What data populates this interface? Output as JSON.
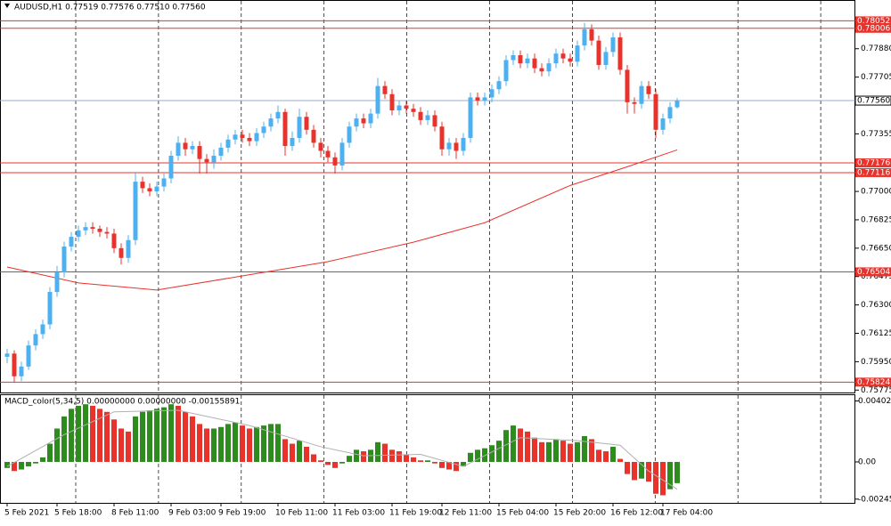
{
  "chart_data": {
    "type": "candlestick",
    "title": "AUDUSD,H1  0.77519 0.77576 0.77510 0.77560",
    "categories": [
      "5 Feb 2021",
      null,
      null,
      null,
      null,
      null,
      null,
      "5 Feb 18:00",
      null,
      null,
      null,
      null,
      null,
      null,
      null,
      "8 Feb 11:00",
      null,
      null,
      null,
      null,
      null,
      null,
      null,
      "9 Feb 03:00",
      null,
      null,
      null,
      null,
      null,
      null,
      "9 Feb 19:00",
      null,
      null,
      null,
      null,
      null,
      null,
      null,
      "10 Feb 11:00",
      null,
      null,
      null,
      null,
      null,
      null,
      null,
      "11 Feb 03:00",
      null,
      null,
      null,
      null,
      null,
      null,
      null,
      "11 Feb 19:00",
      null,
      null,
      null,
      null,
      null,
      null,
      "12 Feb 11:00",
      null,
      null,
      null,
      null,
      null,
      null,
      null,
      "15 Feb 04:00",
      null,
      null,
      null,
      null,
      null,
      null,
      null,
      "15 Feb 20:00",
      null,
      null,
      null,
      null,
      null,
      null,
      null,
      "16 Feb 12:00",
      null,
      null,
      null,
      null,
      null,
      null,
      "17 Feb 04:00",
      null,
      null
    ],
    "open": [
      0.7598,
      0.76,
      0.7586,
      0.7592,
      0.7605,
      0.7612,
      0.7618,
      0.7638,
      0.765,
      0.7666,
      0.7672,
      0.7676,
      0.7678,
      0.7677,
      0.7675,
      0.7674,
      0.7665,
      0.7659,
      0.767,
      0.7706,
      0.7702,
      0.77,
      0.7703,
      0.7708,
      0.7722,
      0.773,
      0.7726,
      0.7728,
      0.772,
      0.7718,
      0.7722,
      0.7727,
      0.7732,
      0.7735,
      0.7733,
      0.7731,
      0.7736,
      0.774,
      0.7745,
      0.7749,
      0.7728,
      0.7733,
      0.7746,
      0.7738,
      0.773,
      0.7725,
      0.7721,
      0.7716,
      0.773,
      0.774,
      0.7745,
      0.7742,
      0.7748,
      0.7765,
      0.776,
      0.775,
      0.7753,
      0.7751,
      0.7749,
      0.7744,
      0.7747,
      0.774,
      0.7726,
      0.773,
      0.7725,
      0.7733,
      0.7758,
      0.7756,
      0.7758,
      0.7763,
      0.7768,
      0.7781,
      0.7784,
      0.7779,
      0.7782,
      0.7776,
      0.7774,
      0.7779,
      0.7785,
      0.7782,
      0.778,
      0.779,
      0.78,
      0.7793,
      0.7778,
      0.7786,
      0.7795,
      0.7775,
      0.7755,
      0.7754,
      0.7765,
      0.776,
      0.7738,
      0.7745,
      0.77519
    ],
    "high": [
      0.7603,
      0.7602,
      0.7595,
      0.7608,
      0.7615,
      0.7621,
      0.7641,
      0.7654,
      0.7669,
      0.7675,
      0.7679,
      0.7681,
      0.7681,
      0.7679,
      0.7678,
      0.7677,
      0.7668,
      0.7673,
      0.7712,
      0.7709,
      0.7705,
      0.7706,
      0.7711,
      0.7725,
      0.7734,
      0.7733,
      0.7731,
      0.7731,
      0.7723,
      0.7726,
      0.773,
      0.7735,
      0.7738,
      0.7738,
      0.7736,
      0.7739,
      0.7743,
      0.7748,
      0.7753,
      0.7751,
      0.7737,
      0.7751,
      0.7749,
      0.7741,
      0.7733,
      0.7728,
      0.7724,
      0.7733,
      0.7743,
      0.7748,
      0.7748,
      0.7751,
      0.777,
      0.7768,
      0.7763,
      0.7756,
      0.7756,
      0.7754,
      0.7752,
      0.775,
      0.775,
      0.7743,
      0.7733,
      0.7733,
      0.7736,
      0.7761,
      0.7761,
      0.7761,
      0.7766,
      0.7771,
      0.7784,
      0.7787,
      0.7787,
      0.7785,
      0.7785,
      0.7779,
      0.7782,
      0.7788,
      0.7788,
      0.7785,
      0.7793,
      0.7804,
      0.7803,
      0.7796,
      0.7789,
      0.7798,
      0.7798,
      0.7778,
      0.7758,
      0.7768,
      0.7768,
      0.7763,
      0.7748,
      0.7755,
      0.77576
    ],
    "low": [
      0.7594,
      0.7582,
      0.7583,
      0.759,
      0.7602,
      0.7609,
      0.7615,
      0.7635,
      0.7647,
      0.7663,
      0.7669,
      0.7673,
      0.7674,
      0.7672,
      0.7671,
      0.7662,
      0.7655,
      0.7656,
      0.7667,
      0.7699,
      0.7697,
      0.7697,
      0.77,
      0.7705,
      0.7719,
      0.7722,
      0.7723,
      0.7711,
      0.7711,
      0.7714,
      0.7719,
      0.7724,
      0.7729,
      0.773,
      0.7728,
      0.7728,
      0.7733,
      0.7737,
      0.7742,
      0.7722,
      0.7725,
      0.773,
      0.7735,
      0.7727,
      0.7721,
      0.7718,
      0.7711,
      0.7713,
      0.7727,
      0.7737,
      0.7739,
      0.7739,
      0.7745,
      0.7757,
      0.7747,
      0.7747,
      0.7748,
      0.7746,
      0.7741,
      0.7741,
      0.7737,
      0.7722,
      0.7722,
      0.772,
      0.7722,
      0.773,
      0.7753,
      0.7753,
      0.7755,
      0.776,
      0.7765,
      0.7778,
      0.7776,
      0.7776,
      0.7773,
      0.7771,
      0.7771,
      0.7776,
      0.7779,
      0.7777,
      0.7777,
      0.7787,
      0.779,
      0.7775,
      0.7775,
      0.7783,
      0.7772,
      0.7748,
      0.7748,
      0.7751,
      0.7757,
      0.7733,
      0.7735,
      0.7742,
      0.7751
    ],
    "close": [
      0.76,
      0.7586,
      0.7592,
      0.7605,
      0.7612,
      0.7618,
      0.7638,
      0.765,
      0.7666,
      0.7672,
      0.7676,
      0.7678,
      0.7677,
      0.7675,
      0.7674,
      0.7665,
      0.7659,
      0.767,
      0.7706,
      0.7702,
      0.77,
      0.7703,
      0.7708,
      0.7722,
      0.773,
      0.7726,
      0.7728,
      0.772,
      0.7718,
      0.7722,
      0.7727,
      0.7732,
      0.7735,
      0.7733,
      0.7731,
      0.7736,
      0.774,
      0.7745,
      0.7749,
      0.7728,
      0.7733,
      0.7746,
      0.7738,
      0.773,
      0.7725,
      0.7721,
      0.7716,
      0.773,
      0.774,
      0.7745,
      0.7742,
      0.7748,
      0.7765,
      0.776,
      0.775,
      0.7753,
      0.7751,
      0.7749,
      0.7744,
      0.7747,
      0.774,
      0.7726,
      0.773,
      0.7725,
      0.7733,
      0.7758,
      0.7756,
      0.7758,
      0.7763,
      0.7768,
      0.7781,
      0.7784,
      0.7779,
      0.7782,
      0.7776,
      0.7774,
      0.7779,
      0.7785,
      0.7782,
      0.778,
      0.779,
      0.78,
      0.7793,
      0.7778,
      0.7786,
      0.7795,
      0.7775,
      0.7755,
      0.7754,
      0.7765,
      0.776,
      0.7738,
      0.7745,
      0.7752,
      0.7756
    ],
    "up_color": "#4db0f0",
    "down_color": "#e8332c",
    "ylim": [
      0.7576,
      0.78175
    ],
    "yticks": [
      {
        "value": 0.7788,
        "label": "0.77880"
      },
      0.77705,
      0.77355,
      {
        "value": 0.77,
        "label": "0.77000"
      },
      0.76825,
      {
        "value": 0.7665,
        "label": "0.76650"
      },
      0.76475,
      {
        "value": 0.763,
        "label": "0.76300"
      },
      0.76125,
      {
        "value": 0.7595,
        "label": "0.75950"
      },
      0.75775
    ],
    "levels": [
      0.78052,
      0.78006,
      0.77176,
      0.77116,
      0.76504,
      0.75824
    ],
    "level_color": "#e8332c",
    "price_line": {
      "value": 0.7756,
      "label": "0.77560"
    },
    "ma": {
      "x": [
        0,
        10,
        21,
        33,
        45,
        57,
        67,
        79,
        87,
        94
      ],
      "values": [
        0.76534,
        0.76436,
        0.76392,
        0.76479,
        0.76567,
        0.76687,
        0.76807,
        0.77037,
        0.77152,
        0.77256
      ],
      "color": "#e8332c"
    },
    "macd": {
      "title": "MACD_color(5,34,5) 0.00000000 0.00000000 -0.00155891",
      "values": [
        -0.0004,
        -0.0006,
        -0.0005,
        -0.0003,
        -0.0001,
        0.0003,
        0.0012,
        0.0022,
        0.003,
        0.0035,
        0.0037,
        0.0038,
        0.0037,
        0.0035,
        0.0033,
        0.0028,
        0.0022,
        0.002,
        0.003,
        0.0033,
        0.0034,
        0.0035,
        0.0036,
        0.0038,
        0.0037,
        0.0033,
        0.003,
        0.0025,
        0.0022,
        0.0022,
        0.0023,
        0.0025,
        0.0026,
        0.0024,
        0.0022,
        0.0023,
        0.0024,
        0.0025,
        0.0025,
        0.0015,
        0.0012,
        0.0014,
        0.001,
        0.0005,
        0.0001,
        -0.0002,
        -0.0004,
        -0.0001,
        0.0004,
        0.0008,
        0.0007,
        0.0008,
        0.0013,
        0.0012,
        0.0008,
        0.0007,
        0.0005,
        0.0003,
        0.0001,
        0.0001,
        -0.0001,
        -0.0004,
        -0.0005,
        -0.0006,
        -0.0003,
        0.0006,
        0.0008,
        0.0009,
        0.0011,
        0.0014,
        0.0021,
        0.0024,
        0.0022,
        0.002,
        0.0016,
        0.0013,
        0.0013,
        0.0015,
        0.0014,
        0.0012,
        0.0013,
        0.0017,
        0.0015,
        0.0008,
        0.0007,
        0.001,
        0.0002,
        -0.0008,
        -0.0012,
        -0.0011,
        -0.0013,
        -0.0021,
        -0.0022,
        -0.0018,
        -0.0014
      ],
      "up_color": "#2e8b1e",
      "down_color": "#e8332c",
      "signal": {
        "x": [
          0,
          8,
          15,
          24,
          34,
          44,
          50,
          58,
          64,
          72,
          80,
          86,
          90,
          94
        ],
        "values": [
          -0.0003,
          0.0018,
          0.0033,
          0.0034,
          0.0024,
          0.001,
          0.0004,
          0.0005,
          -0.0003,
          0.0016,
          0.0014,
          0.0011,
          -0.0006,
          -0.0018
        ],
        "color": "#b0b0b0"
      },
      "ylim": [
        -0.0027,
        0.0044
      ],
      "yticks": [
        0.0040213,
        {
          "value": 0,
          "label": "0.00"
        },
        -0.002454
      ]
    }
  }
}
